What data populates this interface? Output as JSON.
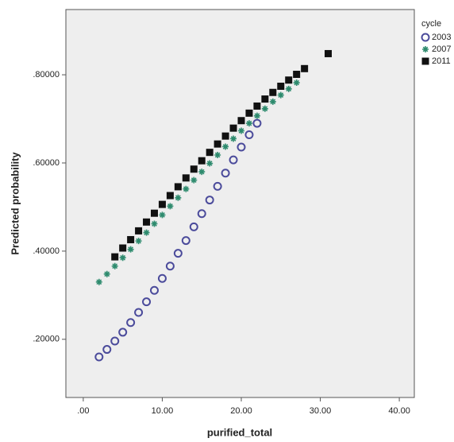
{
  "chart_data": {
    "type": "scatter",
    "x_label": "purified_total",
    "y_label": "Predicted probability",
    "legend_title": "cycle",
    "legend_position": "right",
    "xlim": [
      -2.2,
      41.9
    ],
    "ylim": [
      0.068,
      0.948
    ],
    "xticks": [
      {
        "value": 0,
        "label": ".00"
      },
      {
        "value": 10,
        "label": "10.00"
      },
      {
        "value": 20,
        "label": "20.00"
      },
      {
        "value": 30,
        "label": "30.00"
      },
      {
        "value": 40,
        "label": "40.00"
      }
    ],
    "yticks": [
      {
        "value": 0.2,
        "label": ".20000"
      },
      {
        "value": 0.4,
        "label": ".40000"
      },
      {
        "value": 0.6,
        "label": ".60000"
      },
      {
        "value": 0.8,
        "label": ".80000"
      }
    ],
    "series": [
      {
        "name": "2003",
        "color": "#4b4b9b",
        "marker": "circle",
        "x": [
          2,
          3,
          4,
          5,
          6,
          7,
          8,
          9,
          10,
          11,
          12,
          13,
          14,
          15,
          16,
          17,
          18,
          19,
          20,
          21,
          22
        ],
        "values": [
          0.16,
          0.177,
          0.196,
          0.216,
          0.238,
          0.261,
          0.285,
          0.311,
          0.338,
          0.366,
          0.395,
          0.424,
          0.455,
          0.485,
          0.516,
          0.547,
          0.577,
          0.607,
          0.636,
          0.664,
          0.69
        ]
      },
      {
        "name": "2007",
        "color": "#2e8b6e",
        "marker": "star",
        "x": [
          2,
          3,
          4,
          5,
          6,
          7,
          8,
          9,
          10,
          11,
          12,
          13,
          14,
          15,
          16,
          17,
          18,
          19,
          20,
          21,
          22,
          23,
          24,
          25,
          26,
          27
        ],
        "values": [
          0.33,
          0.348,
          0.366,
          0.385,
          0.404,
          0.423,
          0.442,
          0.462,
          0.482,
          0.502,
          0.521,
          0.541,
          0.561,
          0.58,
          0.599,
          0.618,
          0.637,
          0.655,
          0.673,
          0.69,
          0.707,
          0.723,
          0.739,
          0.754,
          0.768,
          0.782
        ]
      },
      {
        "name": "2011",
        "color": "#111111",
        "marker": "square",
        "x": [
          4,
          5,
          6,
          7,
          8,
          9,
          10,
          11,
          12,
          13,
          14,
          15,
          16,
          17,
          18,
          19,
          20,
          21,
          22,
          23,
          24,
          25,
          26,
          27,
          28,
          31
        ],
        "values": [
          0.387,
          0.407,
          0.426,
          0.446,
          0.466,
          0.486,
          0.506,
          0.526,
          0.546,
          0.566,
          0.586,
          0.605,
          0.624,
          0.643,
          0.661,
          0.679,
          0.696,
          0.713,
          0.729,
          0.745,
          0.76,
          0.774,
          0.788,
          0.801,
          0.814,
          0.848
        ]
      }
    ]
  }
}
